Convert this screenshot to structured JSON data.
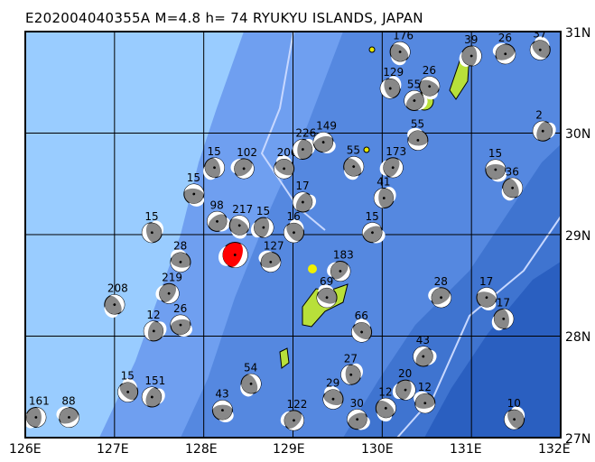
{
  "title": "E202004040355A M=4.8 h= 74 RYUKYU ISLANDS, JAPAN",
  "map": {
    "lon_range": [
      126,
      132
    ],
    "lat_range": [
      27,
      31
    ],
    "lon_ticks": [
      "126E",
      "127E",
      "128E",
      "129E",
      "130E",
      "131E",
      "132E"
    ],
    "lat_ticks": [
      "31N",
      "30N",
      "29N",
      "28N",
      "27N"
    ],
    "colors": {
      "main_event": "#ff0000",
      "other_events": "#888888",
      "land": "#b8e03a",
      "shallow_sea": "#99ccff",
      "deep_sea": "#2a5fc0"
    }
  },
  "main_event": {
    "lon": 128.35,
    "lat": 28.8
  },
  "events": [
    {
      "label": "161",
      "lon": 126.12,
      "lat": 27.2
    },
    {
      "label": "88",
      "lon": 126.49,
      "lat": 27.2
    },
    {
      "label": "15",
      "lon": 127.15,
      "lat": 27.45
    },
    {
      "label": "151",
      "lon": 127.42,
      "lat": 27.4
    },
    {
      "label": "43",
      "lon": 128.21,
      "lat": 27.27
    },
    {
      "label": "54",
      "lon": 128.53,
      "lat": 27.53
    },
    {
      "label": "122",
      "lon": 129.01,
      "lat": 27.17
    },
    {
      "label": "29",
      "lon": 129.45,
      "lat": 27.38
    },
    {
      "label": "27",
      "lon": 129.65,
      "lat": 27.62
    },
    {
      "label": "30",
      "lon": 129.72,
      "lat": 27.18
    },
    {
      "label": "12",
      "lon": 130.04,
      "lat": 27.29
    },
    {
      "label": "20",
      "lon": 130.26,
      "lat": 27.47
    },
    {
      "label": "12",
      "lon": 130.48,
      "lat": 27.34
    },
    {
      "label": "10",
      "lon": 131.48,
      "lat": 27.18
    },
    {
      "label": "43",
      "lon": 130.46,
      "lat": 27.8
    },
    {
      "label": "17",
      "lon": 131.17,
      "lat": 28.38
    },
    {
      "label": "17",
      "lon": 131.36,
      "lat": 28.17
    },
    {
      "label": "28",
      "lon": 130.66,
      "lat": 28.38
    },
    {
      "label": "66",
      "lon": 129.77,
      "lat": 28.04
    },
    {
      "label": "12",
      "lon": 127.44,
      "lat": 28.05
    },
    {
      "label": "26",
      "lon": 127.74,
      "lat": 28.11
    },
    {
      "label": "208",
      "lon": 127.0,
      "lat": 28.31
    },
    {
      "label": "219",
      "lon": 127.61,
      "lat": 28.42
    },
    {
      "label": "28",
      "lon": 127.74,
      "lat": 28.73
    },
    {
      "label": "15",
      "lon": 127.42,
      "lat": 29.02
    },
    {
      "label": "98",
      "lon": 128.15,
      "lat": 29.13
    },
    {
      "label": "217",
      "lon": 128.4,
      "lat": 29.09
    },
    {
      "label": "15",
      "lon": 128.67,
      "lat": 29.07
    },
    {
      "label": "127",
      "lon": 128.75,
      "lat": 28.73
    },
    {
      "label": "16",
      "lon": 129.01,
      "lat": 29.02
    },
    {
      "label": "17",
      "lon": 129.11,
      "lat": 29.32
    },
    {
      "label": "15",
      "lon": 127.89,
      "lat": 29.4
    },
    {
      "label": "15",
      "lon": 128.12,
      "lat": 29.66
    },
    {
      "label": "102",
      "lon": 128.45,
      "lat": 29.65
    },
    {
      "label": "206",
      "lon": 128.9,
      "lat": 29.65
    },
    {
      "label": "226",
      "lon": 129.11,
      "lat": 29.84
    },
    {
      "label": "149",
      "lon": 129.34,
      "lat": 29.91
    },
    {
      "label": "55",
      "lon": 129.68,
      "lat": 29.67
    },
    {
      "label": "173",
      "lon": 130.12,
      "lat": 29.66
    },
    {
      "label": "55",
      "lon": 130.4,
      "lat": 29.93
    },
    {
      "label": "129",
      "lon": 130.09,
      "lat": 30.44
    },
    {
      "label": "55",
      "lon": 130.36,
      "lat": 30.32
    },
    {
      "label": "26",
      "lon": 130.53,
      "lat": 30.46
    },
    {
      "label": "39",
      "lon": 131.0,
      "lat": 30.76
    },
    {
      "label": "26",
      "lon": 131.38,
      "lat": 30.78
    },
    {
      "label": "37",
      "lon": 131.77,
      "lat": 30.82
    },
    {
      "label": "2",
      "lon": 131.8,
      "lat": 30.02
    },
    {
      "label": "15",
      "lon": 131.27,
      "lat": 29.64
    },
    {
      "label": "36",
      "lon": 131.46,
      "lat": 29.46
    },
    {
      "label": "183",
      "lon": 129.53,
      "lat": 28.64
    },
    {
      "label": "69",
      "lon": 129.38,
      "lat": 28.38
    },
    {
      "label": "41",
      "lon": 130.02,
      "lat": 29.36
    },
    {
      "label": "15",
      "lon": 129.89,
      "lat": 29.02
    },
    {
      "label": "176",
      "lon": 130.2,
      "lat": 30.8
    }
  ]
}
